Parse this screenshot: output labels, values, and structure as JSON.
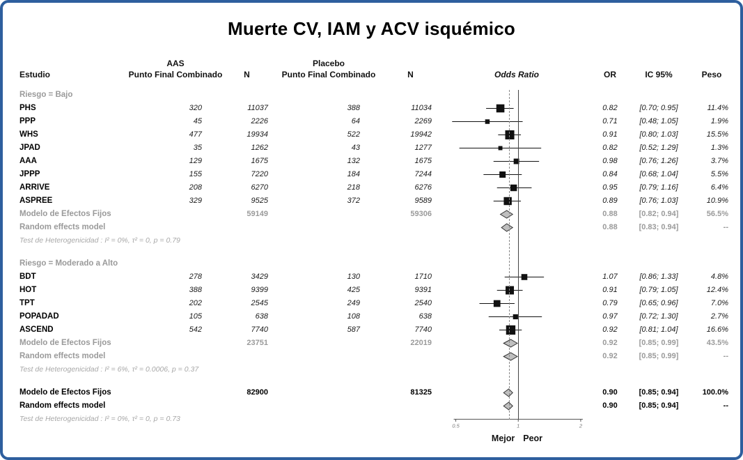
{
  "title": "Muerte CV, IAM y ACV isquémico",
  "frame": {
    "border_color": "#2e5f9e"
  },
  "header": {
    "estudio": "Estudio",
    "aas": "AAS",
    "placebo": "Placebo",
    "pfc": "Punto Final Combinado",
    "n": "N",
    "odds_ratio": "Odds Ratio",
    "or": "OR",
    "ci": "IC 95%",
    "peso": "Peso"
  },
  "axis": {
    "ticks": [
      "0.5",
      "1",
      "2"
    ],
    "tick_values": [
      0.5,
      1,
      2
    ],
    "range": [
      0.42,
      2.3
    ],
    "ref_line": 1,
    "dashed_line": 0.9,
    "better": "Mejor",
    "worse": "Peor"
  },
  "chart_data": {
    "type": "forest",
    "title": "Muerte CV, IAM y ACV isquémico",
    "groups": [
      {
        "label": "Riesgo = Bajo",
        "studies": [
          {
            "name": "PHS",
            "aas_pfc": "320",
            "aas_n": "11037",
            "pbo_pfc": "388",
            "pbo_n": "11034",
            "or": 0.82,
            "lo": 0.7,
            "hi": 0.95,
            "or_text": "0.82",
            "ci_text": "[0.70; 0.95]",
            "weight": 11.4,
            "weight_text": "11.4%"
          },
          {
            "name": "PPP",
            "aas_pfc": "45",
            "aas_n": "2226",
            "pbo_pfc": "64",
            "pbo_n": "2269",
            "or": 0.71,
            "lo": 0.48,
            "hi": 1.05,
            "or_text": "0.71",
            "ci_text": "[0.48; 1.05]",
            "weight": 1.9,
            "weight_text": "1.9%"
          },
          {
            "name": "WHS",
            "aas_pfc": "477",
            "aas_n": "19934",
            "pbo_pfc": "522",
            "pbo_n": "19942",
            "or": 0.91,
            "lo": 0.8,
            "hi": 1.03,
            "or_text": "0.91",
            "ci_text": "[0.80; 1.03]",
            "weight": 15.5,
            "weight_text": "15.5%"
          },
          {
            "name": "JPAD",
            "aas_pfc": "35",
            "aas_n": "1262",
            "pbo_pfc": "43",
            "pbo_n": "1277",
            "or": 0.82,
            "lo": 0.52,
            "hi": 1.29,
            "or_text": "0.82",
            "ci_text": "[0.52; 1.29]",
            "weight": 1.3,
            "weight_text": "1.3%"
          },
          {
            "name": "AAA",
            "aas_pfc": "129",
            "aas_n": "1675",
            "pbo_pfc": "132",
            "pbo_n": "1675",
            "or": 0.98,
            "lo": 0.76,
            "hi": 1.26,
            "or_text": "0.98",
            "ci_text": "[0.76; 1.26]",
            "weight": 3.7,
            "weight_text": "3.7%"
          },
          {
            "name": "JPPP",
            "aas_pfc": "155",
            "aas_n": "7220",
            "pbo_pfc": "184",
            "pbo_n": "7244",
            "or": 0.84,
            "lo": 0.68,
            "hi": 1.04,
            "or_text": "0.84",
            "ci_text": "[0.68; 1.04]",
            "weight": 5.5,
            "weight_text": "5.5%"
          },
          {
            "name": "ARRIVE",
            "aas_pfc": "208",
            "aas_n": "6270",
            "pbo_pfc": "218",
            "pbo_n": "6276",
            "or": 0.95,
            "lo": 0.79,
            "hi": 1.16,
            "or_text": "0.95",
            "ci_text": "[0.79; 1.16]",
            "weight": 6.4,
            "weight_text": "6.4%"
          },
          {
            "name": "ASPREE",
            "aas_pfc": "329",
            "aas_n": "9525",
            "pbo_pfc": "372",
            "pbo_n": "9589",
            "or": 0.89,
            "lo": 0.76,
            "hi": 1.03,
            "or_text": "0.89",
            "ci_text": "[0.76; 1.03]",
            "weight": 10.9,
            "weight_text": "10.9%"
          }
        ],
        "fixed": {
          "label": "Modelo de Efectos Fijos",
          "aas_n": "59149",
          "pbo_n": "59306",
          "or": 0.88,
          "lo": 0.82,
          "hi": 0.94,
          "or_text": "0.88",
          "ci_text": "[0.82; 0.94]",
          "weight_text": "56.5%"
        },
        "random": {
          "label": "Random effects model",
          "or": 0.88,
          "lo": 0.83,
          "hi": 0.94,
          "or_text": "0.88",
          "ci_text": "[0.83; 0.94]",
          "weight_text": "--"
        },
        "heterogeneity": "Test de Heterogenicidad : I² = 0%, τ² = 0, p = 0.79"
      },
      {
        "label": "Riesgo = Moderado a Alto",
        "studies": [
          {
            "name": "BDT",
            "aas_pfc": "278",
            "aas_n": "3429",
            "pbo_pfc": "130",
            "pbo_n": "1710",
            "or": 1.07,
            "lo": 0.86,
            "hi": 1.33,
            "or_text": "1.07",
            "ci_text": "[0.86; 1.33]",
            "weight": 4.8,
            "weight_text": "4.8%"
          },
          {
            "name": "HOT",
            "aas_pfc": "388",
            "aas_n": "9399",
            "pbo_pfc": "425",
            "pbo_n": "9391",
            "or": 0.91,
            "lo": 0.79,
            "hi": 1.05,
            "or_text": "0.91",
            "ci_text": "[0.79; 1.05]",
            "weight": 12.4,
            "weight_text": "12.4%"
          },
          {
            "name": "TPT",
            "aas_pfc": "202",
            "aas_n": "2545",
            "pbo_pfc": "249",
            "pbo_n": "2540",
            "or": 0.79,
            "lo": 0.65,
            "hi": 0.96,
            "or_text": "0.79",
            "ci_text": "[0.65; 0.96]",
            "weight": 7.0,
            "weight_text": "7.0%"
          },
          {
            "name": "POPADAD",
            "aas_pfc": "105",
            "aas_n": "638",
            "pbo_pfc": "108",
            "pbo_n": "638",
            "or": 0.97,
            "lo": 0.72,
            "hi": 1.3,
            "or_text": "0.97",
            "ci_text": "[0.72; 1.30]",
            "weight": 2.7,
            "weight_text": "2.7%"
          },
          {
            "name": "ASCEND",
            "aas_pfc": "542",
            "aas_n": "7740",
            "pbo_pfc": "587",
            "pbo_n": "7740",
            "or": 0.92,
            "lo": 0.81,
            "hi": 1.04,
            "or_text": "0.92",
            "ci_text": "[0.81; 1.04]",
            "weight": 16.6,
            "weight_text": "16.6%"
          }
        ],
        "fixed": {
          "label": "Modelo de Efectos Fijos",
          "aas_n": "23751",
          "pbo_n": "22019",
          "or": 0.92,
          "lo": 0.85,
          "hi": 0.99,
          "or_text": "0.92",
          "ci_text": "[0.85; 0.99]",
          "weight_text": "43.5%"
        },
        "random": {
          "label": "Random effects model",
          "or": 0.92,
          "lo": 0.85,
          "hi": 0.99,
          "or_text": "0.92",
          "ci_text": "[0.85; 0.99]",
          "weight_text": "--"
        },
        "heterogeneity": "Test de Heterogenicidad : I² = 6%, τ² = 0.0006, p = 0.37"
      }
    ],
    "overall": {
      "fixed": {
        "label": "Modelo de Efectos Fijos",
        "aas_n": "82900",
        "pbo_n": "81325",
        "or": 0.9,
        "lo": 0.85,
        "hi": 0.94,
        "or_text": "0.90",
        "ci_text": "[0.85; 0.94]",
        "weight_text": "100.0%"
      },
      "random": {
        "label": "Random effects model",
        "or": 0.9,
        "lo": 0.85,
        "hi": 0.94,
        "or_text": "0.90",
        "ci_text": "[0.85; 0.94]",
        "weight_text": "--"
      },
      "heterogeneity": "Test de Heterogenicidad : I² = 0%, τ² = 0, p = 0.73"
    }
  }
}
